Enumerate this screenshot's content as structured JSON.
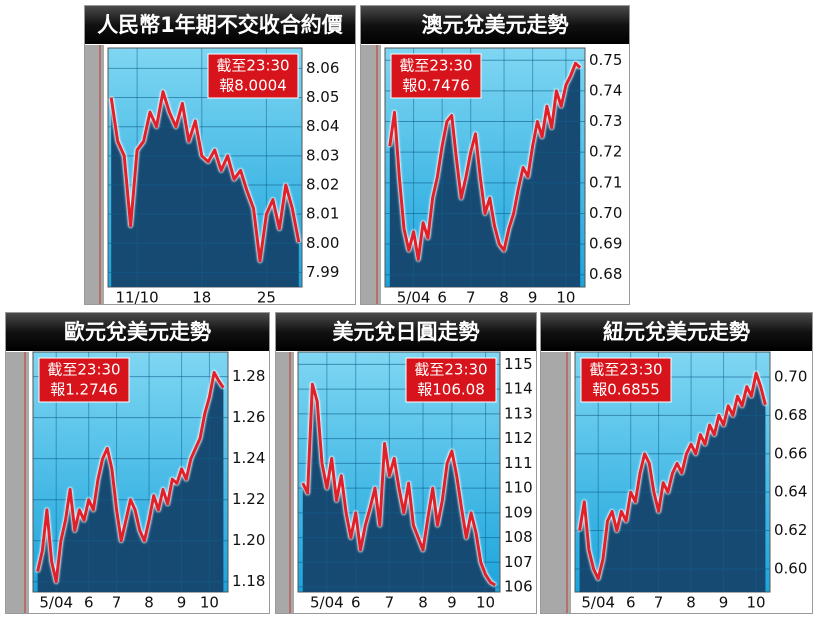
{
  "chart_data": [
    {
      "type": "line",
      "title": "人民幣1年期不交收合約價",
      "annotation": [
        "截至23:30",
        "報8.0004"
      ],
      "annotation_corner": "upper right",
      "values": [
        8.05,
        8.035,
        8.03,
        8.006,
        8.032,
        8.035,
        8.045,
        8.04,
        8.052,
        8.045,
        8.04,
        8.048,
        8.035,
        8.042,
        8.03,
        8.028,
        8.032,
        8.025,
        8.03,
        8.022,
        8.025,
        8.018,
        8.012,
        7.994,
        8.01,
        8.015,
        8.005,
        8.02,
        8.012,
        8.0004
      ],
      "color": "#e2202a",
      "xlim": [
        -0.5,
        29.5
      ],
      "xticks": [
        {
          "value": 4,
          "label": "11/10"
        },
        {
          "value": 14,
          "label": "18"
        },
        {
          "value": 24,
          "label": "25"
        }
      ],
      "ylim": [
        7.985,
        8.067
      ],
      "yticks": [
        8.06,
        8.05,
        8.04,
        8.03,
        8.02,
        8.01,
        {
          "value": 8.0,
          "label": "8.00"
        },
        7.99
      ],
      "grid": true
    },
    {
      "type": "line",
      "title": "澳元兌美元走勢",
      "annotation": [
        "截至23:30",
        "報0.7476"
      ],
      "annotation_corner": "upper left",
      "values": [
        0.722,
        0.733,
        0.712,
        0.695,
        0.688,
        0.694,
        0.685,
        0.697,
        0.692,
        0.705,
        0.712,
        0.722,
        0.73,
        0.732,
        0.718,
        0.705,
        0.712,
        0.72,
        0.726,
        0.712,
        0.7,
        0.705,
        0.696,
        0.69,
        0.688,
        0.695,
        0.7,
        0.708,
        0.715,
        0.712,
        0.722,
        0.73,
        0.725,
        0.735,
        0.728,
        0.74,
        0.735,
        0.742,
        0.745,
        0.749,
        0.7476
      ],
      "color": "#e2202a",
      "xlim": [
        -1,
        41
      ],
      "xticks": [
        {
          "value": 5,
          "label": "5/04"
        },
        {
          "value": 11,
          "label": "6"
        },
        {
          "value": 17,
          "label": "7"
        },
        {
          "value": 24,
          "label": "8"
        },
        {
          "value": 30,
          "label": "9"
        },
        {
          "value": 37,
          "label": "10"
        }
      ],
      "ylim": [
        0.676,
        0.754
      ],
      "yticks": [
        0.75,
        0.74,
        0.73,
        0.72,
        0.71,
        {
          "value": 0.7,
          "label": "0.70"
        },
        0.69,
        0.68
      ],
      "grid": true
    },
    {
      "type": "line",
      "title": "歐元兌美元走勢",
      "annotation": [
        "截至23:30",
        "報1.2746"
      ],
      "annotation_corner": "upper left",
      "values": [
        1.185,
        1.195,
        1.215,
        1.19,
        1.18,
        1.2,
        1.21,
        1.225,
        1.205,
        1.215,
        1.21,
        1.22,
        1.215,
        1.23,
        1.24,
        1.245,
        1.235,
        1.215,
        1.2,
        1.21,
        1.22,
        1.215,
        1.205,
        1.2,
        1.21,
        1.222,
        1.215,
        1.225,
        1.218,
        1.23,
        1.228,
        1.235,
        1.23,
        1.24,
        1.245,
        1.25,
        1.262,
        1.27,
        1.282,
        1.278,
        1.2746
      ],
      "color": "#e2202a",
      "xlim": [
        -1,
        41
      ],
      "xticks": [
        {
          "value": 4,
          "label": "5/04"
        },
        {
          "value": 11,
          "label": "6"
        },
        {
          "value": 17,
          "label": "7"
        },
        {
          "value": 24,
          "label": "8"
        },
        {
          "value": 31,
          "label": "9"
        },
        {
          "value": 37,
          "label": "10"
        }
      ],
      "ylim": [
        1.175,
        1.292
      ],
      "yticks": [
        1.28,
        1.26,
        1.24,
        1.22,
        {
          "value": 1.2,
          "label": "1.20"
        },
        1.18
      ],
      "grid": true
    },
    {
      "type": "line",
      "title": "美元兌日圓走勢",
      "annotation": [
        "截至23:30",
        "報106.08"
      ],
      "annotation_corner": "upper right",
      "values": [
        110.2,
        109.8,
        114.2,
        113.5,
        111.0,
        110.0,
        111.2,
        109.5,
        110.5,
        109.0,
        108.0,
        109.0,
        107.5,
        108.5,
        109.2,
        110.0,
        108.5,
        111.8,
        110.5,
        111.2,
        110.0,
        109.0,
        110.2,
        108.5,
        108.0,
        107.5,
        108.8,
        110.0,
        108.5,
        109.5,
        111.0,
        111.5,
        110.5,
        109.2,
        108.0,
        109.0,
        108.2,
        107.0,
        106.5,
        106.2,
        106.08
      ],
      "color": "#e2202a",
      "xlim": [
        -1,
        41
      ],
      "xticks": [
        {
          "value": 5,
          "label": "5/04"
        },
        {
          "value": 11,
          "label": "6"
        },
        {
          "value": 18,
          "label": "7"
        },
        {
          "value": 25,
          "label": "8"
        },
        {
          "value": 31,
          "label": "9"
        },
        {
          "value": 38,
          "label": "10"
        }
      ],
      "ylim": [
        105.8,
        115.5
      ],
      "yticks": [
        115,
        114,
        113,
        112,
        111,
        110,
        109,
        108,
        107,
        106
      ],
      "grid": true
    },
    {
      "type": "line",
      "title": "紐元兌美元走勢",
      "annotation": [
        "截至23:30",
        "報0.6855"
      ],
      "annotation_corner": "upper left",
      "values": [
        0.62,
        0.635,
        0.61,
        0.6,
        0.595,
        0.605,
        0.625,
        0.63,
        0.62,
        0.63,
        0.625,
        0.64,
        0.635,
        0.65,
        0.66,
        0.655,
        0.64,
        0.63,
        0.645,
        0.64,
        0.65,
        0.655,
        0.65,
        0.66,
        0.665,
        0.66,
        0.67,
        0.665,
        0.675,
        0.67,
        0.68,
        0.675,
        0.685,
        0.68,
        0.69,
        0.685,
        0.695,
        0.69,
        0.702,
        0.695,
        0.6855
      ],
      "color": "#e2202a",
      "xlim": [
        -1,
        41
      ],
      "xticks": [
        {
          "value": 4,
          "label": "5/04"
        },
        {
          "value": 11,
          "label": "6"
        },
        {
          "value": 17,
          "label": "7"
        },
        {
          "value": 24,
          "label": "8"
        },
        {
          "value": 31,
          "label": "9"
        },
        {
          "value": 38,
          "label": "10"
        }
      ],
      "ylim": [
        0.588,
        0.713
      ],
      "yticks": [
        {
          "value": 0.7,
          "label": "0.70"
        },
        0.68,
        0.66,
        0.64,
        0.62,
        {
          "value": 0.6,
          "label": "0.60"
        }
      ],
      "grid": true
    }
  ]
}
